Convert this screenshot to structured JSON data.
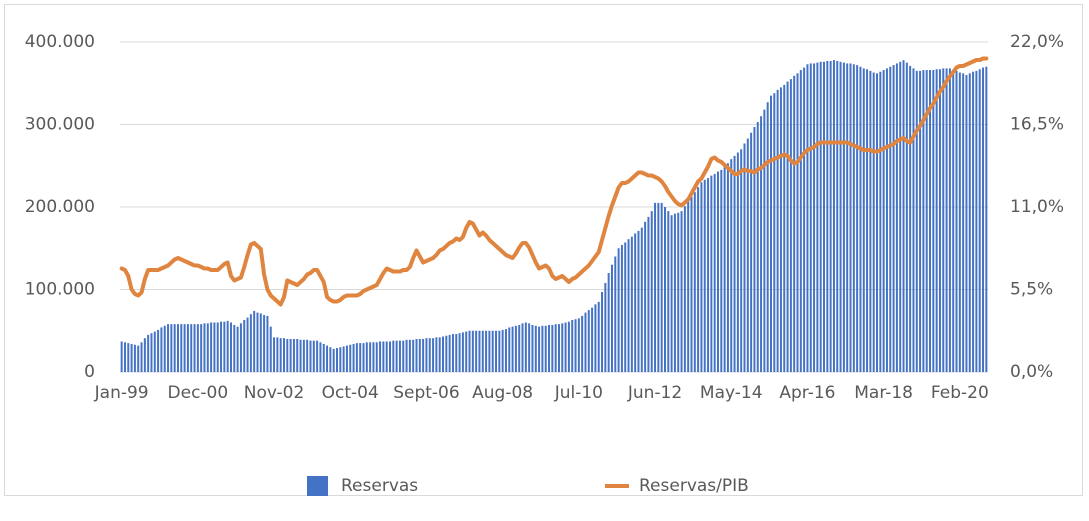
{
  "chart_data": {
    "type": "bar",
    "categories": [
      "Jan-99",
      null,
      null,
      null,
      null,
      null,
      null,
      null,
      null,
      null,
      null,
      null,
      null,
      null,
      null,
      null,
      null,
      null,
      null,
      null,
      null,
      null,
      null,
      "Dec-00",
      null,
      null,
      null,
      null,
      null,
      null,
      null,
      null,
      null,
      null,
      null,
      null,
      null,
      null,
      null,
      null,
      null,
      null,
      null,
      null,
      null,
      null,
      "Nov-02",
      null,
      null,
      null,
      null,
      null,
      null,
      null,
      null,
      null,
      null,
      null,
      null,
      null,
      null,
      null,
      null,
      null,
      null,
      null,
      null,
      null,
      null,
      "Oct-04",
      null,
      null,
      null,
      null,
      null,
      null,
      null,
      null,
      null,
      null,
      null,
      null,
      null,
      null,
      null,
      null,
      null,
      null,
      null,
      null,
      null,
      null,
      "Sept-06",
      null,
      null,
      null,
      null,
      null,
      null,
      null,
      null,
      null,
      null,
      null,
      null,
      null,
      null,
      null,
      null,
      null,
      null,
      null,
      null,
      null,
      null,
      "Aug-08",
      null,
      null,
      null,
      null,
      null,
      null,
      null,
      null,
      null,
      null,
      null,
      null,
      null,
      null,
      null,
      null,
      null,
      null,
      null,
      null,
      null,
      null,
      "Jul-10",
      null,
      null,
      null,
      null,
      null,
      null,
      null,
      null,
      null,
      null,
      null,
      null,
      null,
      null,
      null,
      null,
      null,
      null,
      null,
      null,
      null,
      null,
      "Jun-12",
      null,
      null,
      null,
      null,
      null,
      null,
      null,
      null,
      null,
      null,
      null,
      null,
      null,
      null,
      null,
      null,
      null,
      null,
      null,
      null,
      null,
      null,
      "May-14",
      null,
      null,
      null,
      null,
      null,
      null,
      null,
      null,
      null,
      null,
      null,
      null,
      null,
      null,
      null,
      null,
      null,
      null,
      null,
      null,
      null,
      null,
      "Apr-16",
      null,
      null,
      null,
      null,
      null,
      null,
      null,
      null,
      null,
      null,
      null,
      null,
      null,
      null,
      null,
      null,
      null,
      null,
      null,
      null,
      null,
      null,
      "Mar-18",
      null,
      null,
      null,
      null,
      null,
      null,
      null,
      null,
      null,
      null,
      null,
      null,
      null,
      null,
      null,
      null,
      null,
      null,
      null,
      null,
      null,
      null,
      "Feb-20",
      null,
      null,
      null,
      null,
      null,
      null,
      null,
      null
    ],
    "series": [
      {
        "name": "Reservas",
        "type": "bar",
        "color": "#4472c4",
        "values": [
          37000,
          36000,
          35000,
          34000,
          33000,
          32000,
          36000,
          41000,
          45000,
          47000,
          49000,
          51000,
          54000,
          56000,
          58000,
          58000,
          58000,
          58000,
          58000,
          58000,
          58000,
          58000,
          58000,
          58000,
          58000,
          59000,
          59000,
          60000,
          60000,
          60000,
          61000,
          61000,
          62000,
          60000,
          57000,
          55000,
          59000,
          63000,
          66000,
          70000,
          74000,
          72000,
          71000,
          69000,
          68000,
          55000,
          42000,
          42000,
          41000,
          41000,
          40000,
          40000,
          40000,
          40000,
          39000,
          39000,
          39000,
          38000,
          38000,
          38000,
          36000,
          34000,
          32000,
          30000,
          28000,
          29000,
          30000,
          31000,
          32000,
          33000,
          34000,
          35000,
          35000,
          35000,
          36000,
          36000,
          36000,
          36000,
          37000,
          37000,
          37000,
          37000,
          38000,
          38000,
          38000,
          38000,
          39000,
          39000,
          39000,
          40000,
          40000,
          40000,
          41000,
          41000,
          41000,
          42000,
          42000,
          43000,
          44000,
          45000,
          46000,
          46000,
          47000,
          48000,
          49000,
          50000,
          50000,
          50000,
          50000,
          50000,
          50000,
          50000,
          50000,
          50000,
          50000,
          51000,
          52000,
          54000,
          55000,
          56000,
          57000,
          59000,
          60000,
          59000,
          57000,
          56000,
          55000,
          56000,
          56000,
          57000,
          57000,
          58000,
          58000,
          59000,
          60000,
          61000,
          63000,
          64000,
          65000,
          68000,
          72000,
          75000,
          78000,
          82000,
          85000,
          97000,
          108000,
          120000,
          130000,
          140000,
          150000,
          154000,
          157000,
          161000,
          164000,
          168000,
          171000,
          175000,
          182000,
          188000,
          195000,
          205000,
          205000,
          205000,
          200000,
          195000,
          190000,
          192000,
          193000,
          195000,
          201000,
          207000,
          212000,
          218000,
          224000,
          230000,
          233000,
          235000,
          238000,
          240000,
          243000,
          245000,
          249000,
          253000,
          258000,
          262000,
          266000,
          270000,
          277000,
          283000,
          290000,
          297000,
          303000,
          310000,
          318000,
          327000,
          335000,
          338000,
          342000,
          345000,
          348000,
          352000,
          355000,
          359000,
          362000,
          366000,
          369000,
          373000,
          374000,
          374000,
          375000,
          376000,
          376000,
          377000,
          377000,
          378000,
          377000,
          376000,
          375000,
          374000,
          374000,
          373000,
          372000,
          370000,
          368000,
          367000,
          365000,
          363000,
          362000,
          364000,
          366000,
          368000,
          370000,
          372000,
          374000,
          376000,
          378000,
          375000,
          371000,
          368000,
          365000,
          365000,
          366000,
          366000,
          366000,
          366000,
          367000,
          367000,
          368000,
          368000,
          368000,
          366000,
          365000,
          363000,
          362000,
          360000,
          362000,
          364000,
          365000,
          367000,
          369000,
          370000
        ]
      },
      {
        "name": "Reservas/PIB",
        "type": "line",
        "axis": "y2",
        "color": "#e0853f",
        "values": [
          6.9,
          6.8,
          6.4,
          5.5,
          5.2,
          5.1,
          5.3,
          6.2,
          6.8,
          6.8,
          6.8,
          6.8,
          6.9,
          7.0,
          7.1,
          7.3,
          7.5,
          7.6,
          7.5,
          7.4,
          7.3,
          7.2,
          7.1,
          7.1,
          7.0,
          6.9,
          6.9,
          6.8,
          6.8,
          6.8,
          7.0,
          7.2,
          7.3,
          6.4,
          6.1,
          6.2,
          6.3,
          7.0,
          7.8,
          8.5,
          8.6,
          8.4,
          8.2,
          6.5,
          5.5,
          5.1,
          4.9,
          4.7,
          4.5,
          5.0,
          6.1,
          6.0,
          5.9,
          5.8,
          6.0,
          6.2,
          6.5,
          6.6,
          6.8,
          6.8,
          6.4,
          6.0,
          5.0,
          4.8,
          4.7,
          4.7,
          4.8,
          5.0,
          5.1,
          5.1,
          5.1,
          5.1,
          5.2,
          5.4,
          5.5,
          5.6,
          5.7,
          5.8,
          6.2,
          6.6,
          6.9,
          6.8,
          6.7,
          6.7,
          6.7,
          6.8,
          6.8,
          7.0,
          7.6,
          8.1,
          7.7,
          7.3,
          7.4,
          7.5,
          7.6,
          7.8,
          8.1,
          8.2,
          8.4,
          8.6,
          8.7,
          8.9,
          8.8,
          9.0,
          9.6,
          10.0,
          9.9,
          9.5,
          9.1,
          9.3,
          9.1,
          8.8,
          8.6,
          8.4,
          8.2,
          8.0,
          7.8,
          7.7,
          7.6,
          7.9,
          8.3,
          8.6,
          8.6,
          8.3,
          7.8,
          7.3,
          6.9,
          7.0,
          7.1,
          6.9,
          6.4,
          6.2,
          6.3,
          6.4,
          6.2,
          6.0,
          6.2,
          6.3,
          6.5,
          6.7,
          6.9,
          7.1,
          7.4,
          7.7,
          8.0,
          8.8,
          9.6,
          10.4,
          11.1,
          11.7,
          12.3,
          12.6,
          12.6,
          12.7,
          12.9,
          13.1,
          13.3,
          13.3,
          13.2,
          13.1,
          13.1,
          13.0,
          12.9,
          12.7,
          12.4,
          12.0,
          11.7,
          11.4,
          11.2,
          11.1,
          11.3,
          11.5,
          11.9,
          12.3,
          12.7,
          12.9,
          13.3,
          13.7,
          14.2,
          14.3,
          14.1,
          14.0,
          13.8,
          13.6,
          13.4,
          13.2,
          13.2,
          13.4,
          13.5,
          13.4,
          13.4,
          13.3,
          13.5,
          13.6,
          13.8,
          14.0,
          14.1,
          14.2,
          14.3,
          14.4,
          14.5,
          14.4,
          14.1,
          13.9,
          14.0,
          14.3,
          14.6,
          14.8,
          14.9,
          15.0,
          15.2,
          15.3,
          15.3,
          15.3,
          15.3,
          15.3,
          15.3,
          15.3,
          15.3,
          15.3,
          15.2,
          15.1,
          15.0,
          14.9,
          14.8,
          14.8,
          14.8,
          14.7,
          14.7,
          14.8,
          14.9,
          15.0,
          15.1,
          15.2,
          15.4,
          15.5,
          15.6,
          15.4,
          15.3,
          15.7,
          16.1,
          16.4,
          16.8,
          17.2,
          17.6,
          17.9,
          18.3,
          18.7,
          19.0,
          19.4,
          19.7,
          20.0,
          20.3,
          20.4,
          20.4,
          20.5,
          20.6,
          20.7,
          20.8,
          20.8,
          20.9,
          20.9
        ]
      }
    ],
    "ylim": [
      0,
      400000
    ],
    "yticks": [
      0,
      {
        "value": 100000,
        "label": "100.000"
      },
      {
        "value": 200000,
        "label": "200.000"
      },
      {
        "value": 300000,
        "label": "300.000"
      },
      {
        "value": 400000,
        "label": "400.000"
      }
    ],
    "y2lim": [
      0,
      22
    ],
    "y2ticks": [
      {
        "value": 0,
        "label": "0,0%"
      },
      {
        "value": 5.5,
        "label": "5,5%"
      },
      {
        "value": 11,
        "label": "11,0%"
      },
      {
        "value": 16.5,
        "label": "16,5%"
      },
      {
        "value": 22,
        "label": "22,0%"
      }
    ],
    "grid": true,
    "legend": "bottom"
  }
}
